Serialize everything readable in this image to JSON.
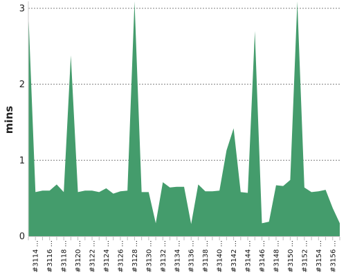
{
  "chart_data": {
    "type": "area",
    "title": "",
    "ylabel": "mins",
    "xlabel": "",
    "ylim": [
      0,
      3
    ],
    "y_ticks": [
      0,
      1,
      2,
      3
    ],
    "grid": true,
    "area_color": "#449c6c",
    "x_tick_labels": [
      "#3114 ...",
      "#3116 ...",
      "#3118 ...",
      "#3120 ...",
      "#3122 ...",
      "#3124 ...",
      "#3126 ...",
      "#3128 ...",
      "#3130 ...",
      "#3132 ...",
      "#3134 ...",
      "#3136 ...",
      "#3138 ...",
      "#3140 ...",
      "#3142 ...",
      "#3144 ...",
      "#3146 ...",
      "#3148 ...",
      "#3150 ...",
      "#3152 ...",
      "#3154 ...",
      "#3156 ..."
    ],
    "x": [
      3113,
      3114,
      3115,
      3116,
      3117,
      3118,
      3119,
      3120,
      3121,
      3122,
      3123,
      3124,
      3125,
      3126,
      3127,
      3128,
      3129,
      3130,
      3131,
      3132,
      3133,
      3134,
      3135,
      3136,
      3137,
      3138,
      3139,
      3140,
      3141,
      3142,
      3143,
      3144,
      3145,
      3146,
      3147,
      3148,
      3149,
      3150,
      3151,
      3152,
      3153,
      3154,
      3155,
      3156,
      3157
    ],
    "values": [
      2.95,
      0.58,
      0.6,
      0.6,
      0.68,
      0.58,
      2.38,
      0.58,
      0.6,
      0.6,
      0.58,
      0.63,
      0.56,
      0.59,
      0.6,
      3.2,
      0.58,
      0.58,
      0.17,
      0.71,
      0.64,
      0.65,
      0.65,
      0.16,
      0.68,
      0.59,
      0.59,
      0.6,
      1.13,
      1.42,
      0.58,
      0.57,
      2.7,
      0.17,
      0.19,
      0.67,
      0.66,
      0.74,
      3.2,
      0.64,
      0.58,
      0.59,
      0.61,
      0.37,
      0.17
    ]
  }
}
